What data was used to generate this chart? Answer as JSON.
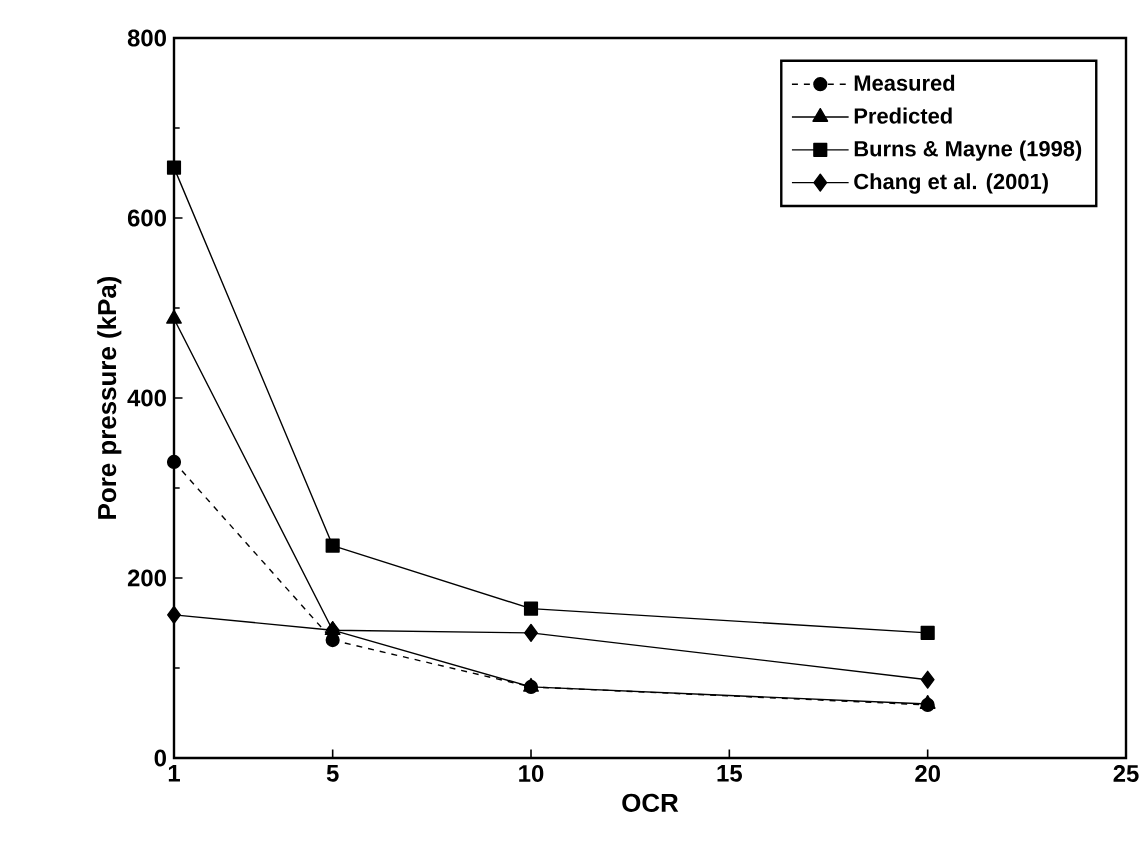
{
  "chart_data": {
    "type": "line",
    "xlabel": "OCR",
    "ylabel": "Pore pressure (kPa)",
    "x": [
      1,
      5,
      10,
      20
    ],
    "series": [
      {
        "name": "Measured",
        "color": "#000000",
        "marker": "circle",
        "line_style": "dashed",
        "values": [
          329,
          131,
          79,
          59
        ]
      },
      {
        "name": "Predicted",
        "color": "#000000",
        "marker": "triangle",
        "line_style": "solid",
        "values": [
          488,
          142,
          79,
          60
        ]
      },
      {
        "name": "Burns & Mayne (1998)",
        "color": "#000000",
        "marker": "square",
        "line_style": "solid",
        "values": [
          656,
          236,
          166,
          139
        ]
      },
      {
        "name": "Chang et al. (2001)",
        "color": "#000000",
        "marker": "diamond",
        "line_style": "solid",
        "values": [
          159,
          142,
          139,
          87
        ]
      }
    ],
    "xlim": [
      1,
      25
    ],
    "xticks": [
      1,
      5,
      10,
      15,
      20,
      25
    ],
    "ylim": [
      0,
      800
    ],
    "yticks": [
      0,
      200,
      400,
      600,
      800
    ],
    "grid": false,
    "legend": "top right"
  }
}
